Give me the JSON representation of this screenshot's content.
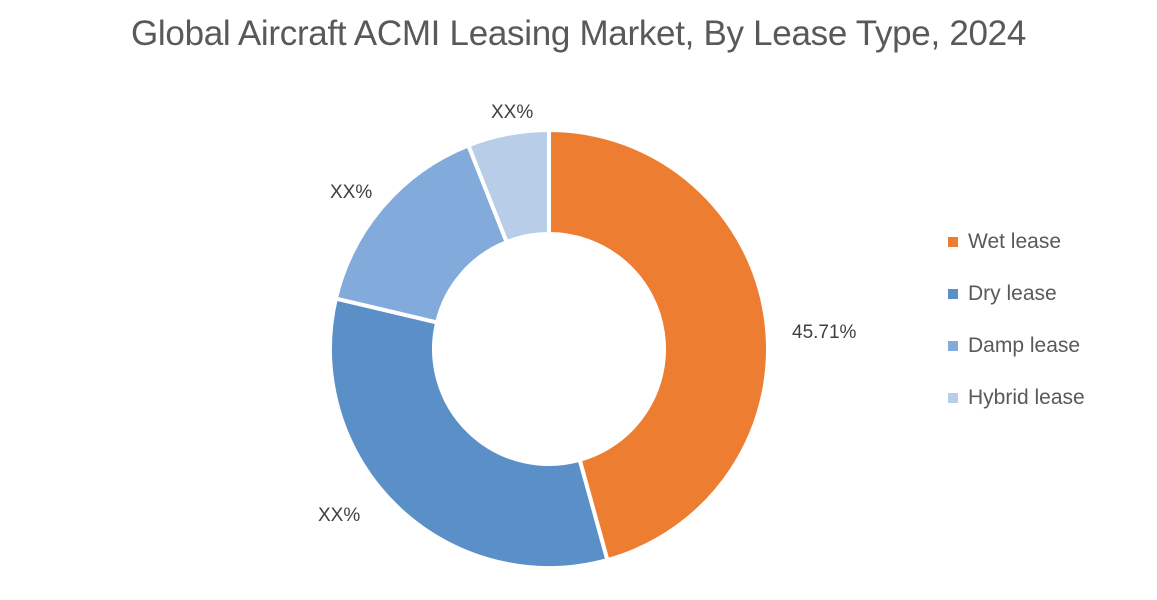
{
  "chart_data": {
    "type": "pie",
    "subtype": "donut",
    "title": "Global Aircraft ACMI Leasing Market, By Lease Type, 2024",
    "categories": [
      "Wet lease",
      "Dry lease",
      "Damp lease",
      "Hybrid lease"
    ],
    "values": [
      45.71,
      33.0,
      15.3,
      6.0
    ],
    "data_labels": [
      "45.71%",
      "XX%",
      "XX%",
      "XX%"
    ],
    "colors": [
      "#ED7D31",
      "#5B8FC7",
      "#82ABDB",
      "#B7CDE8"
    ],
    "legend_position": "right",
    "start_angle": 0,
    "direction": "clockwise"
  },
  "title": "Global Aircraft ACMI Leasing Market, By Lease Type, 2024",
  "legend": [
    {
      "label": "Wet lease",
      "color": "#ED7D31"
    },
    {
      "label": "Dry lease",
      "color": "#5B8FC7"
    },
    {
      "label": "Damp lease",
      "color": "#82ABDB"
    },
    {
      "label": "Hybrid lease",
      "color": "#B7CDE8"
    }
  ],
  "labels": {
    "wet": "45.71%",
    "dry": "XX%",
    "damp": "XX%",
    "hybrid": "XX%"
  }
}
